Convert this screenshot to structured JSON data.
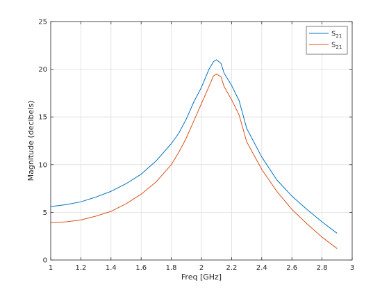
{
  "chart_data": {
    "type": "line",
    "title": "",
    "xlabel": "Freq [GHz]",
    "ylabel": "Magnitude (decibels)",
    "xlim": [
      1,
      3
    ],
    "ylim": [
      0,
      25
    ],
    "xticks": [
      1,
      1.2,
      1.4,
      1.6,
      1.8,
      2,
      2.2,
      2.4,
      2.6,
      2.8,
      3
    ],
    "xtick_labels": [
      "1",
      "1.2",
      "1.4",
      "1.6",
      "1.8",
      "2",
      "2.2",
      "2.4",
      "2.6",
      "2.8",
      "3"
    ],
    "yticks": [
      0,
      5,
      10,
      15,
      20,
      25
    ],
    "ytick_labels": [
      "0",
      "5",
      "10",
      "15",
      "20",
      "25"
    ],
    "grid": true,
    "legend_position": "top-right",
    "series": [
      {
        "name": "S",
        "name_sub": "21",
        "color": "#0072BD",
        "x": [
          1.0,
          1.1,
          1.2,
          1.3,
          1.4,
          1.5,
          1.6,
          1.7,
          1.8,
          1.85,
          1.9,
          1.95,
          2.0,
          2.05,
          2.08,
          2.1,
          2.13,
          2.15,
          2.2,
          2.25,
          2.3,
          2.4,
          2.5,
          2.6,
          2.7,
          2.8,
          2.9
        ],
        "y": [
          5.6,
          5.8,
          6.1,
          6.6,
          7.2,
          8.0,
          9.0,
          10.4,
          12.2,
          13.3,
          14.8,
          16.6,
          18.1,
          20.0,
          20.8,
          21.0,
          20.6,
          19.6,
          18.3,
          16.7,
          13.8,
          10.8,
          8.4,
          6.7,
          5.3,
          4.0,
          2.8
        ]
      },
      {
        "name": "S",
        "name_sub": "21",
        "color": "#D95319",
        "x": [
          1.0,
          1.1,
          1.2,
          1.3,
          1.4,
          1.5,
          1.6,
          1.7,
          1.8,
          1.85,
          1.9,
          1.95,
          2.0,
          2.05,
          2.08,
          2.1,
          2.13,
          2.15,
          2.2,
          2.25,
          2.3,
          2.4,
          2.5,
          2.6,
          2.7,
          2.8,
          2.9
        ],
        "y": [
          3.9,
          4.0,
          4.2,
          4.6,
          5.1,
          5.9,
          6.9,
          8.2,
          10.0,
          11.3,
          12.8,
          14.6,
          16.4,
          18.2,
          19.3,
          19.5,
          19.2,
          18.2,
          16.8,
          15.2,
          12.4,
          9.5,
          7.2,
          5.3,
          3.8,
          2.4,
          1.2
        ]
      }
    ]
  }
}
